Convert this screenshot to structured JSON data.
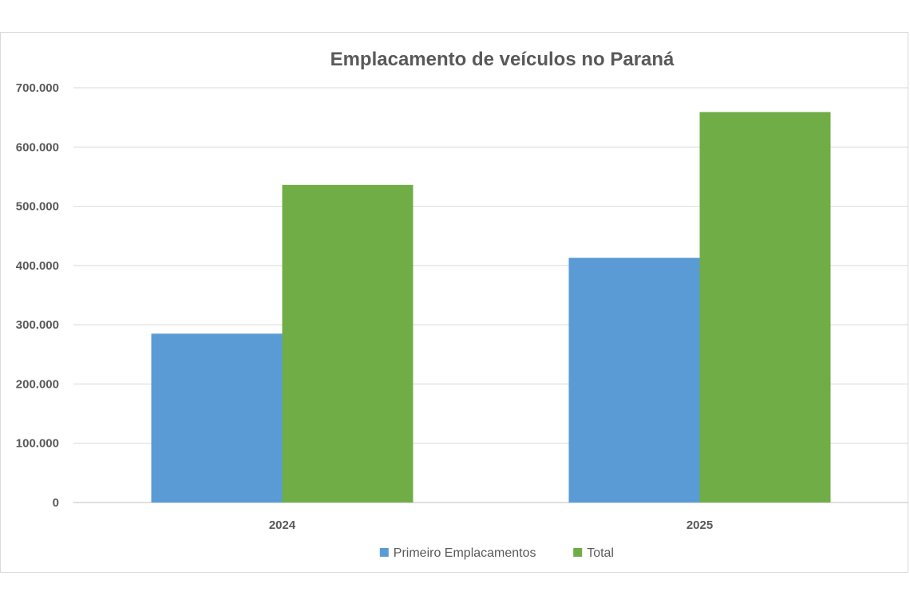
{
  "chart_data": {
    "type": "bar",
    "title": "Emplacamento de veículos no Paraná",
    "categories": [
      "2024",
      "2025"
    ],
    "series": [
      {
        "name": "Primeiro Emplacamentos",
        "color": "#5b9bd5",
        "values": [
          285000,
          413000
        ]
      },
      {
        "name": "Total",
        "color": "#70ad47",
        "values": [
          536000,
          659000
        ]
      }
    ],
    "ylim": [
      0,
      700000
    ],
    "y_ticks": [
      "0",
      "100.000",
      "200.000",
      "300.000",
      "400.000",
      "500.000",
      "600.000",
      "700.000"
    ],
    "grid": true,
    "legend_position": "bottom"
  }
}
